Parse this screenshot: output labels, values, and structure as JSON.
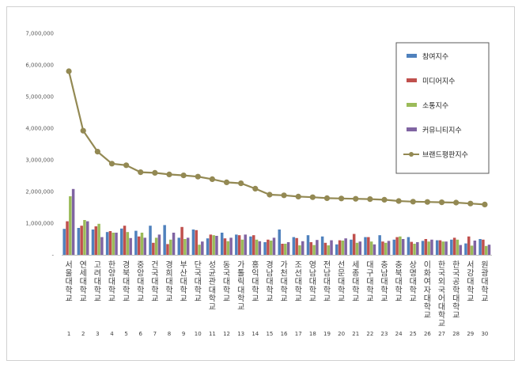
{
  "chart_data": {
    "type": "bar",
    "title": "",
    "xlabel": "",
    "ylabel": "",
    "ylim": [
      0,
      7000000
    ],
    "yticks": [
      "-",
      "1,000,000",
      "2,000,000",
      "3,000,000",
      "4,000,000",
      "5,000,000",
      "6,000,000",
      "7,000,000"
    ],
    "ytick_values": [
      0,
      1000000,
      2000000,
      3000000,
      4000000,
      5000000,
      6000000,
      7000000
    ],
    "grid": false,
    "legend_position": "right",
    "categories": [
      "서울대학교",
      "연세대학교",
      "고려대학교",
      "한양대학교",
      "경북대학교",
      "중앙대학교",
      "건국대학교",
      "경희대학교",
      "부산대학교",
      "단국대학교",
      "성균관대학교",
      "동국대학교",
      "가톨릭대학교",
      "홍익대학교",
      "경남대학교",
      "가천대학교",
      "조선대학교",
      "영남대학교",
      "전남대학교",
      "선문대학교",
      "세종대학교",
      "대구대학교",
      "충남대학교",
      "충북대학교",
      "상명대학교",
      "이화여자대학교",
      "한국외국어대학교",
      "한국공학대학교",
      "서강대학교",
      "원광대학교"
    ],
    "ranks": [
      "1",
      "2",
      "3",
      "4",
      "5",
      "6",
      "7",
      "8",
      "9",
      "10",
      "11",
      "12",
      "13",
      "14",
      "15",
      "16",
      "17",
      "18",
      "19",
      "20",
      "21",
      "22",
      "23",
      "24",
      "25",
      "26",
      "27",
      "28",
      "29",
      "30"
    ],
    "series": [
      {
        "name": "참여지수",
        "type": "bar",
        "color": "#4f81bd",
        "values": [
          820000,
          850000,
          800000,
          720000,
          830000,
          760000,
          920000,
          940000,
          540000,
          800000,
          520000,
          700000,
          640000,
          580000,
          400000,
          800000,
          560000,
          620000,
          580000,
          330000,
          480000,
          560000,
          620000,
          480000,
          560000,
          440000,
          460000,
          480000,
          360000,
          500000
        ]
      },
      {
        "name": "미디어지수",
        "type": "bar",
        "color": "#c0504d",
        "values": [
          1060000,
          920000,
          900000,
          750000,
          920000,
          580000,
          380000,
          340000,
          880000,
          780000,
          640000,
          520000,
          620000,
          620000,
          480000,
          350000,
          530000,
          400000,
          380000,
          460000,
          660000,
          560000,
          420000,
          560000,
          410000,
          500000,
          460000,
          540000,
          580000,
          480000
        ]
      },
      {
        "name": "소통지수",
        "type": "bar",
        "color": "#9bbb59",
        "values": [
          1850000,
          1100000,
          980000,
          700000,
          720000,
          700000,
          540000,
          480000,
          500000,
          320000,
          620000,
          430000,
          480000,
          480000,
          450000,
          350000,
          300000,
          310000,
          300000,
          450000,
          380000,
          420000,
          380000,
          580000,
          350000,
          420000,
          420000,
          480000,
          290000,
          280000
        ]
      },
      {
        "name": "커뮤니티지수",
        "type": "bar",
        "color": "#8064a2",
        "values": [
          2080000,
          1060000,
          560000,
          700000,
          530000,
          540000,
          640000,
          700000,
          540000,
          420000,
          600000,
          540000,
          640000,
          430000,
          540000,
          400000,
          430000,
          470000,
          460000,
          520000,
          420000,
          330000,
          440000,
          500000,
          400000,
          480000,
          420000,
          310000,
          450000,
          320000
        ]
      },
      {
        "name": "브랜드평판지수",
        "type": "line",
        "color": "#938953",
        "values": [
          5800000,
          3920000,
          3260000,
          2880000,
          2830000,
          2610000,
          2590000,
          2540000,
          2510000,
          2470000,
          2390000,
          2290000,
          2260000,
          2090000,
          1900000,
          1880000,
          1840000,
          1820000,
          1790000,
          1780000,
          1770000,
          1760000,
          1740000,
          1700000,
          1680000,
          1670000,
          1660000,
          1650000,
          1620000,
          1590000
        ]
      }
    ]
  }
}
